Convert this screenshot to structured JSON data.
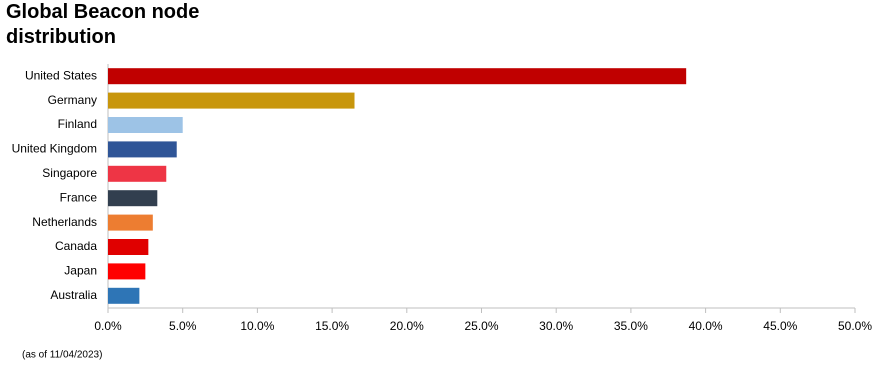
{
  "chart_data": {
    "type": "hbar",
    "title": "Global Beacon node distribution",
    "categories": [
      "United States",
      "Germany",
      "Finland",
      "United Kingdom",
      "Singapore",
      "France",
      "Netherlands",
      "Canada",
      "Japan",
      "Australia"
    ],
    "values": [
      38.7,
      16.5,
      5.0,
      4.6,
      3.9,
      3.3,
      3.0,
      2.7,
      2.5,
      2.1
    ],
    "colors": [
      "#c00000",
      "#c8960c",
      "#9dc3e6",
      "#2f5597",
      "#ee3545",
      "#323f4f",
      "#ed7d31",
      "#e00000",
      "#ff0000",
      "#2e75b6"
    ],
    "xlim": [
      0,
      50
    ],
    "xticks": [
      {
        "value": 0,
        "label": "0.0%"
      },
      {
        "value": 5,
        "label": "5.0%"
      },
      {
        "value": 10,
        "label": "10.0%"
      },
      {
        "value": 15,
        "label": "15.0%"
      },
      {
        "value": 20,
        "label": "20.0%"
      },
      {
        "value": 25,
        "label": "25.0%"
      },
      {
        "value": 30,
        "label": "30.0%"
      },
      {
        "value": 35,
        "label": "35.0%"
      },
      {
        "value": 40,
        "label": "40.0%"
      },
      {
        "value": 45,
        "label": "45.0%"
      },
      {
        "value": 50,
        "label": "50.0%"
      }
    ],
    "note": "(as of 11/04/2023)"
  }
}
